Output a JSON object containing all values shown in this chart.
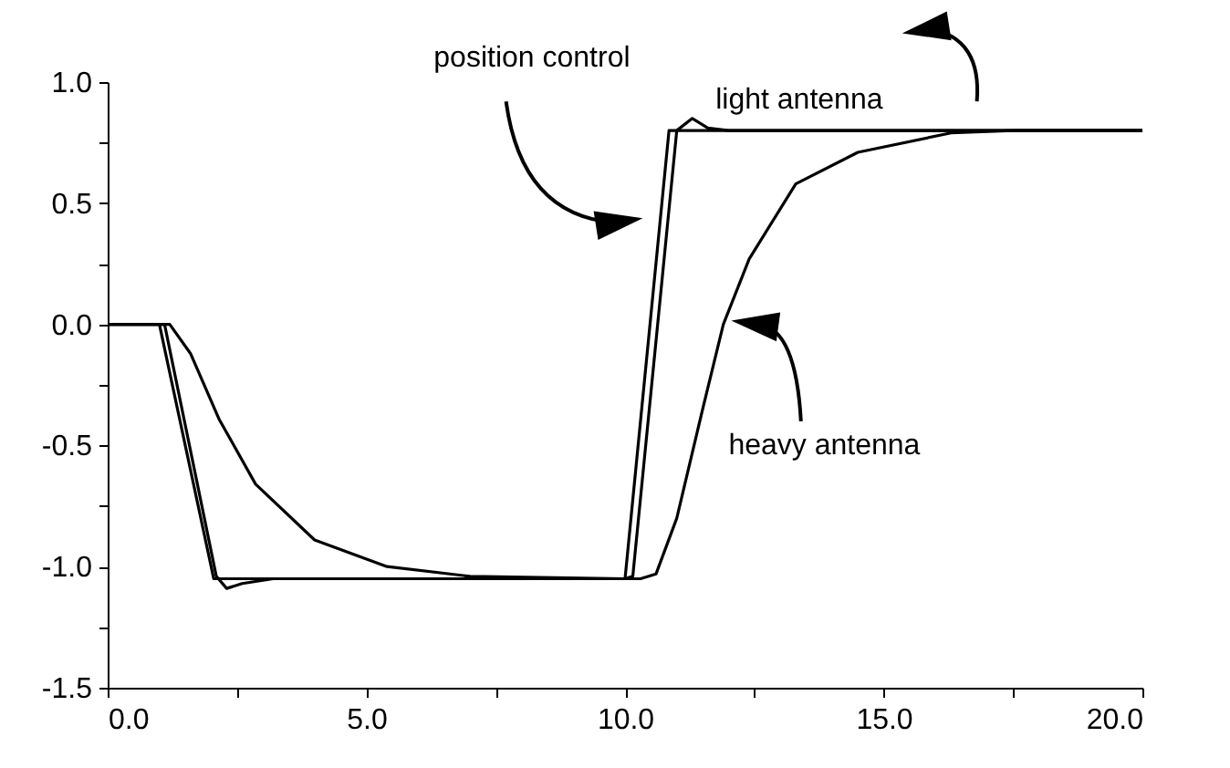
{
  "chart_data": {
    "type": "line",
    "xlim": [
      0,
      20
    ],
    "ylim": [
      -1.5,
      1.0
    ],
    "xticks": [
      {
        "value": 0,
        "label": "0.0"
      },
      {
        "value": 2.5,
        "label": null
      },
      {
        "value": 5,
        "label": "5.0"
      },
      {
        "value": 7.5,
        "label": null
      },
      {
        "value": 10,
        "label": "10.0"
      },
      {
        "value": 12.5,
        "label": null
      },
      {
        "value": 15,
        "label": "15.0"
      },
      {
        "value": 17.5,
        "label": null
      },
      {
        "value": 20,
        "label": "20.0"
      }
    ],
    "yticks": [
      {
        "value": -1.5,
        "label": "-1.5"
      },
      {
        "value": -1.25,
        "label": null
      },
      {
        "value": -1,
        "label": "-1.0"
      },
      {
        "value": -0.75,
        "label": null
      },
      {
        "value": -0.5,
        "label": "-0.5"
      },
      {
        "value": -0.25,
        "label": null
      },
      {
        "value": 0,
        "label": "0.0"
      },
      {
        "value": 0.25,
        "label": null
      },
      {
        "value": 0.5,
        "label": "0.5"
      },
      {
        "value": 0.75,
        "label": null
      },
      {
        "value": 1,
        "label": "1.0"
      }
    ],
    "grid": false,
    "legend": false,
    "line_style": "solid",
    "series": [
      {
        "name": "position control",
        "color": "#000000",
        "x": [
          0,
          1.0,
          2.05,
          10.0,
          10.85,
          20
        ],
        "values": [
          0,
          0,
          -1.05,
          -1.05,
          0.8,
          0.8
        ]
      },
      {
        "name": "light antenna",
        "color": "#000000",
        "x": [
          0,
          1.1,
          2.1,
          2.3,
          2.6,
          3.2,
          10.0,
          10.15,
          11.0,
          11.3,
          11.6,
          12.0,
          20
        ],
        "values": [
          0,
          0,
          -1.04,
          -1.09,
          -1.07,
          -1.05,
          -1.05,
          -1.04,
          0.8,
          0.85,
          0.81,
          0.8,
          0.8
        ]
      },
      {
        "name": "heavy antenna",
        "color": "#000000",
        "x": [
          0,
          1.2,
          1.6,
          2.15,
          2.86,
          4.0,
          5.4,
          7.0,
          10.0,
          10.3,
          10.6,
          11.0,
          11.5,
          11.9,
          12.4,
          13.3,
          14.5,
          16.3,
          17.5,
          20
        ],
        "values": [
          0,
          0,
          -0.12,
          -0.39,
          -0.66,
          -0.89,
          -1.0,
          -1.04,
          -1.05,
          -1.05,
          -1.03,
          -0.8,
          -0.35,
          0,
          0.27,
          0.58,
          0.71,
          0.79,
          0.8,
          0.8
        ]
      }
    ]
  }
}
